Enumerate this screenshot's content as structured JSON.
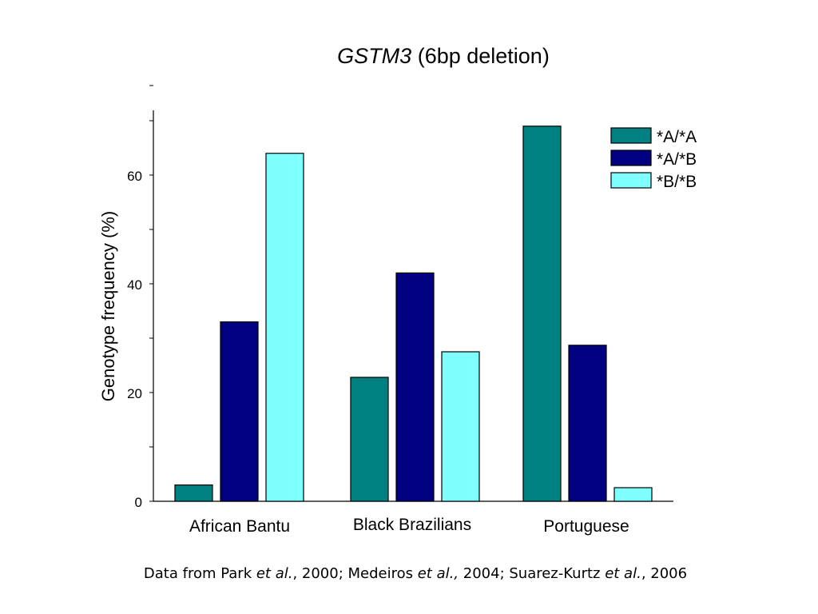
{
  "title": {
    "gene": "GSTM3",
    "rest": "(6bp deletion)"
  },
  "source": {
    "prefix": "Data from Park ",
    "etal1": "et al.",
    "mid1": ", 2000; Medeiros ",
    "etal2": "et al.,",
    "mid2": " 2004; Suarez-Kurtz ",
    "etal3": "et al.",
    "end": ", 2006"
  },
  "colors": {
    "A_A": "#008080",
    "A_B": "#000080",
    "B_B": "#80ffff"
  },
  "chart_data": {
    "type": "bar",
    "title": "GSTM3 (6bp deletion)",
    "xlabel": "",
    "ylabel": "Genotype frequency (%)",
    "ylim": [
      0,
      72
    ],
    "yticks": [
      0,
      20,
      40,
      60
    ],
    "grid": false,
    "legend_position": "top-right",
    "categories": [
      "African Bantu",
      "Black Brazilians",
      "Portuguese"
    ],
    "series": [
      {
        "name": "*A/*A",
        "values": [
          3.0,
          22.8,
          69.0
        ]
      },
      {
        "name": "*A/*B",
        "values": [
          33.0,
          42.0,
          28.7
        ]
      },
      {
        "name": "*B/*B",
        "values": [
          64.0,
          27.5,
          2.5
        ]
      }
    ]
  }
}
